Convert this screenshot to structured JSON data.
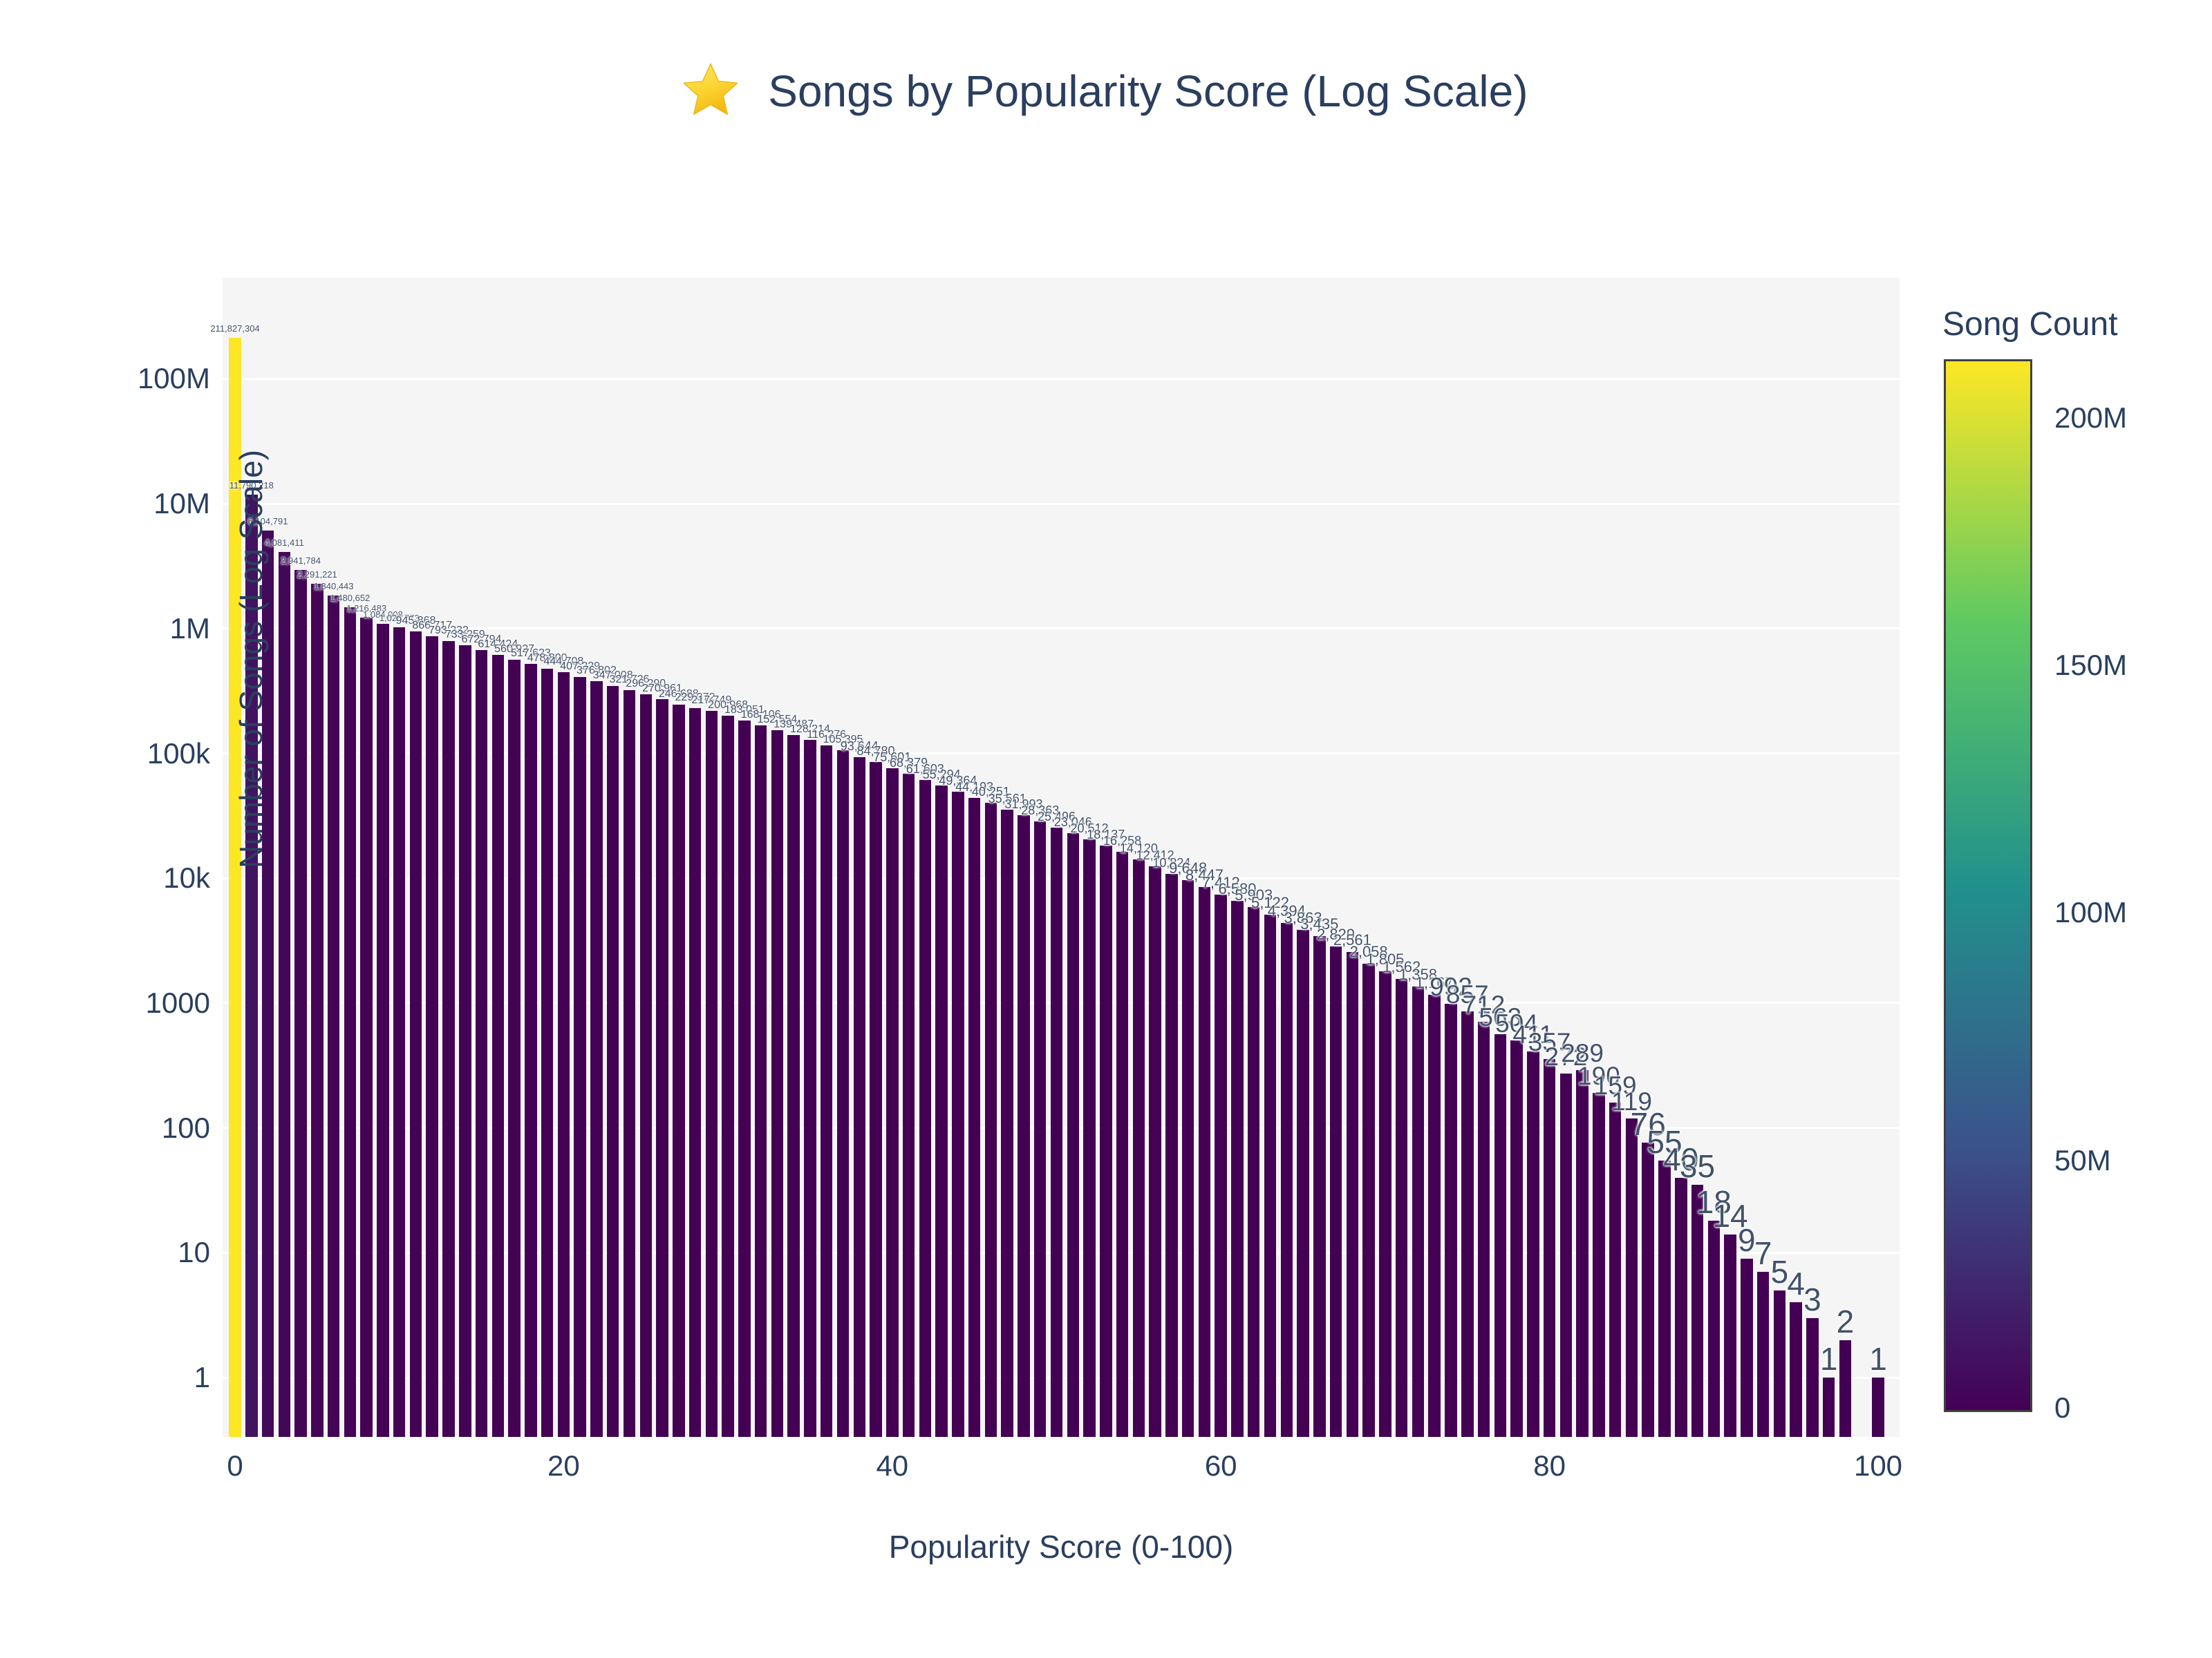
{
  "title": {
    "text": "Songs by Popularity Score (Log Scale)",
    "icon": "star-emoji"
  },
  "chart_data": {
    "type": "bar",
    "title": "Songs by Popularity Score (Log Scale)",
    "xlabel": "Popularity Score (0-100)",
    "ylabel": "Number of Songs (Log Scale)",
    "log_scale_y": true,
    "x_ticks": [
      "0",
      "20",
      "40",
      "60",
      "80",
      "100"
    ],
    "x_tick_values": [
      0,
      20,
      40,
      60,
      80,
      100
    ],
    "y_ticks": [
      "1",
      "10",
      "100",
      "1000",
      "10k",
      "100k",
      "1M",
      "10M",
      "100M"
    ],
    "y_tick_values": [
      1,
      10,
      100,
      1000,
      10000,
      100000,
      1000000,
      10000000,
      100000000
    ],
    "grid": true,
    "bar_color_low": "#440154",
    "bar_color_high": "#fde725",
    "plot_bg": "#f5f5f6",
    "categories_note": "popularity scores 0-100; score 99 has no bar",
    "scores": [
      0,
      1,
      2,
      3,
      4,
      5,
      6,
      7,
      8,
      9,
      10,
      11,
      12,
      13,
      14,
      15,
      16,
      17,
      18,
      19,
      20,
      21,
      22,
      23,
      24,
      25,
      26,
      27,
      28,
      29,
      30,
      31,
      32,
      33,
      34,
      35,
      36,
      37,
      38,
      39,
      40,
      41,
      42,
      43,
      44,
      45,
      46,
      47,
      48,
      49,
      50,
      51,
      52,
      53,
      54,
      55,
      56,
      57,
      58,
      59,
      60,
      61,
      62,
      63,
      64,
      65,
      66,
      67,
      68,
      69,
      70,
      71,
      72,
      73,
      74,
      75,
      76,
      77,
      78,
      79,
      80,
      81,
      82,
      83,
      84,
      85,
      86,
      87,
      88,
      89,
      90,
      91,
      92,
      93,
      94,
      95,
      96,
      97,
      98,
      99,
      100
    ],
    "values": [
      211827304,
      11790218,
      6104791,
      4081411,
      2941784,
      2291221,
      1840443,
      1480652,
      1216483,
      1084008,
      1026773,
      945868,
      866717,
      793232,
      733259,
      672794,
      614424,
      560927,
      517623,
      478800,
      444708,
      407229,
      376802,
      347008,
      321726,
      296290,
      270961,
      246688,
      229372,
      217749,
      200968,
      183051,
      168106,
      152554,
      139487,
      128214,
      116276,
      105395,
      93644,
      84780,
      75601,
      68379,
      61603,
      55294,
      49364,
      44193,
      40251,
      35561,
      31993,
      28363,
      25496,
      23046,
      20512,
      18137,
      16258,
      14120,
      12412,
      10824,
      9648,
      8447,
      7412,
      6580,
      5903,
      5122,
      4394,
      3863,
      3435,
      2829,
      2561,
      2058,
      1805,
      1562,
      1358,
      1167,
      992,
      857,
      712,
      563,
      504,
      411,
      357,
      272,
      289,
      190,
      159,
      119,
      76,
      55,
      40,
      35,
      18,
      14,
      9,
      7,
      5,
      4,
      3,
      1,
      2,
      null,
      1
    ],
    "colorbar": {
      "title": "Song Count",
      "ticks": [
        "0",
        "50M",
        "100M",
        "150M",
        "200M"
      ],
      "tick_values": [
        0,
        50000000,
        100000000,
        150000000,
        200000000
      ],
      "max_value": 211827304,
      "colorscale": "viridis",
      "stops": [
        [
          0,
          "#440154"
        ],
        [
          0.25,
          "#3b528b"
        ],
        [
          0.5,
          "#21918c"
        ],
        [
          0.75,
          "#5ec962"
        ],
        [
          1,
          "#fde725"
        ]
      ]
    }
  }
}
